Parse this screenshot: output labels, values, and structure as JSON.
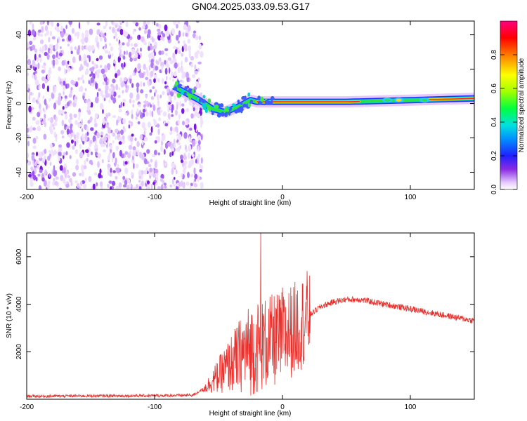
{
  "title": "GN04.2025.033.09.53.G17",
  "chart_data": [
    {
      "type": "heatmap",
      "xlabel": "Height of straight line (km)",
      "ylabel": "Frequency (Hz)",
      "xlim": [
        -200,
        150
      ],
      "ylim": [
        -50,
        48
      ],
      "x_ticks": [
        "-200",
        "-100",
        "0",
        "100"
      ],
      "y_ticks": [
        "-40",
        "-20",
        "0",
        "20",
        "40"
      ],
      "colorbar": {
        "label": "Normalized spectral amplitude",
        "range": [
          0,
          1
        ],
        "ticks": [
          "0.0",
          "0.2",
          "0.4",
          "0.6",
          "0.8"
        ]
      },
      "noise_region_x": [
        -200,
        -65
      ],
      "signal_track": [
        {
          "x": -85,
          "y": 10
        },
        {
          "x": -75,
          "y": 6
        },
        {
          "x": -65,
          "y": 2
        },
        {
          "x": -55,
          "y": -3
        },
        {
          "x": -45,
          "y": -5
        },
        {
          "x": -35,
          "y": -2
        },
        {
          "x": -25,
          "y": 2
        },
        {
          "x": -20,
          "y": 1
        },
        {
          "x": 0,
          "y": 1
        },
        {
          "x": 50,
          "y": 1
        },
        {
          "x": 100,
          "y": 2
        },
        {
          "x": 150,
          "y": 3
        }
      ]
    },
    {
      "type": "line",
      "xlabel": "Height of straight line (km)",
      "ylabel": "SNR (10 * v/v)",
      "xlim": [
        -200,
        150
      ],
      "ylim": [
        0,
        7000
      ],
      "x_ticks": [
        "-200",
        "-100",
        "0",
        "100"
      ],
      "y_ticks": [
        "2000",
        "4000",
        "6000"
      ],
      "color": "#e8302c",
      "series": [
        {
          "x": [
            -200,
            -150,
            -100,
            -70,
            -60,
            -50,
            -40,
            -30,
            -20,
            -10,
            0,
            10,
            20,
            30,
            40,
            50,
            60,
            70,
            80,
            90,
            100,
            110,
            120,
            130,
            140,
            150
          ],
          "y": [
            130,
            140,
            150,
            170,
            500,
            1000,
            1500,
            2000,
            2200,
            2400,
            2600,
            3000,
            3500,
            3900,
            4100,
            4200,
            4200,
            4100,
            4000,
            3900,
            3800,
            3700,
            3600,
            3500,
            3400,
            3300
          ]
        }
      ]
    }
  ]
}
